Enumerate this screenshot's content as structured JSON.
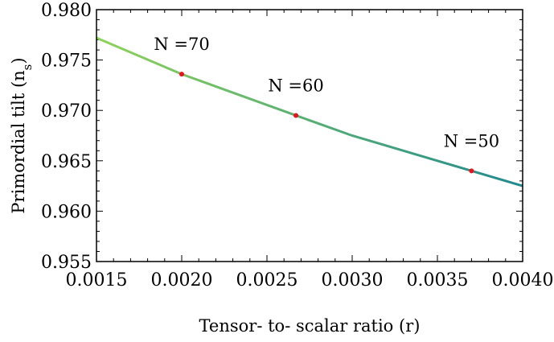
{
  "chart_data": {
    "type": "line",
    "title": "",
    "xlabel": "Tensor- to- scalar ratio (r)",
    "ylabel": "Primordial tilt (n_s)",
    "xlim": [
      0.0015,
      0.004
    ],
    "ylim": [
      0.955,
      0.98
    ],
    "x_ticks": [
      0.0015,
      0.002,
      0.0025,
      0.003,
      0.0035,
      0.004
    ],
    "x_tick_labels": [
      "0.0015",
      "0.0020",
      "0.0025",
      "0.0030",
      "0.0035",
      "0.0040"
    ],
    "y_ticks": [
      0.955,
      0.96,
      0.965,
      0.97,
      0.975,
      0.98
    ],
    "y_tick_labels": [
      "0.955",
      "0.960",
      "0.965",
      "0.970",
      "0.975",
      "0.980"
    ],
    "grid": false,
    "series": [
      {
        "x": [
          0.0015,
          0.002,
          0.00267,
          0.003,
          0.0037,
          0.004
        ],
        "y": [
          0.9772,
          0.9736,
          0.9695,
          0.9675,
          0.964,
          0.9625
        ],
        "color_start": "#8fd35a",
        "color_end": "#218a8f"
      }
    ],
    "markers": [
      {
        "x": 0.002,
        "y": 0.9736,
        "label": "N =70",
        "color": "#e8141b"
      },
      {
        "x": 0.00267,
        "y": 0.9695,
        "label": "N =60",
        "color": "#e8141b"
      },
      {
        "x": 0.0037,
        "y": 0.964,
        "label": "N =50",
        "color": "#e8141b"
      }
    ]
  }
}
